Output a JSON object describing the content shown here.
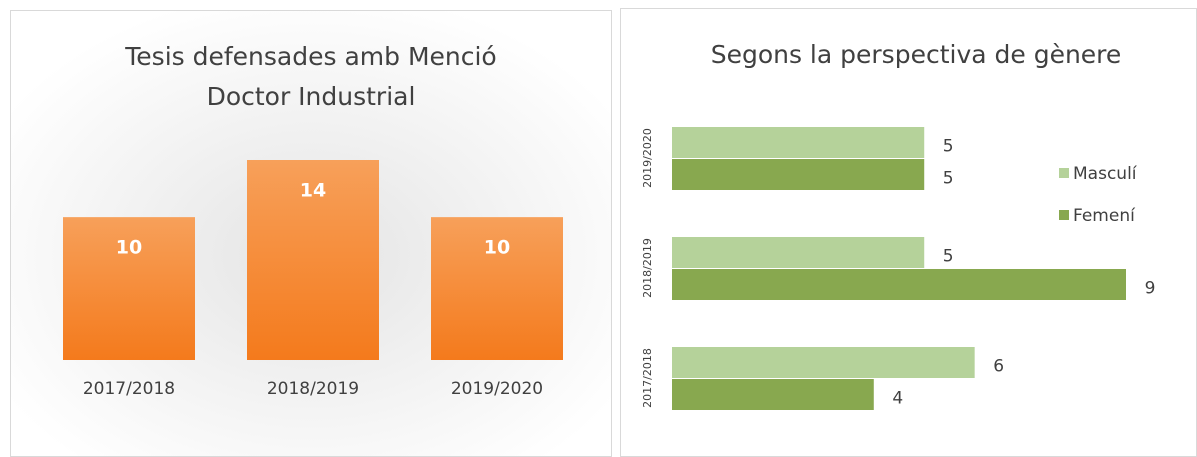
{
  "chart_data": [
    {
      "type": "bar",
      "title_lines": [
        "Tesis defensades amb Menció",
        "Doctor Industrial"
      ],
      "categories": [
        "2017/2018",
        "2018/2019",
        "2019/2020"
      ],
      "values": [
        10,
        14,
        10
      ],
      "color": "#f47c20"
    },
    {
      "type": "hbar",
      "title": "Segons la perspectiva de gènere",
      "categories": [
        "2017/2018",
        "2018/2019",
        "2019/2020"
      ],
      "series": [
        {
          "name": "Masculí",
          "color": "#b5d29a",
          "values": [
            6,
            5,
            5
          ]
        },
        {
          "name": "Femení",
          "color": "#88a84f",
          "values": [
            4,
            9,
            5
          ]
        }
      ],
      "legend": "right"
    }
  ]
}
